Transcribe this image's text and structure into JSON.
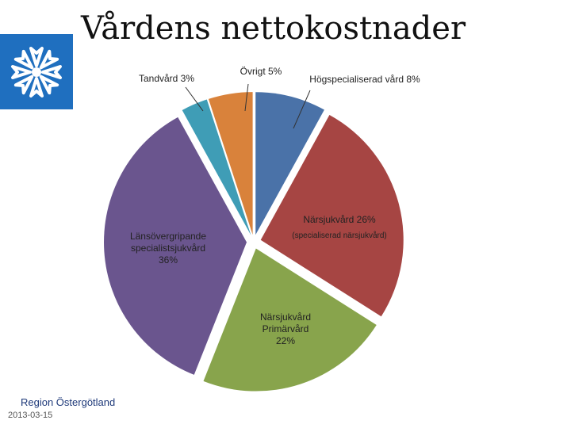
{
  "title": "Vårdens nettokostnader",
  "logo_icon": "cornflower-logo-icon",
  "footer": {
    "organization": "Region Östergötland",
    "date": "2013-03-15"
  },
  "colors": {
    "logo_background": "#1f6fbf"
  },
  "chart_data": {
    "type": "pie",
    "title": "Vårdens nettokostnader",
    "exploded": true,
    "series": [
      {
        "label_lines": [
          "Högspecialiserad vård 8%"
        ],
        "value": 8,
        "color": "#4a72a8"
      },
      {
        "label_lines": [
          "Närsjukvård 26%",
          "(specialiserad närsjukvård)"
        ],
        "value": 26,
        "color": "#a64543"
      },
      {
        "label_lines": [
          "Närsjukvård",
          "Primärvård",
          "22%"
        ],
        "value": 22,
        "color": "#88a44c"
      },
      {
        "label_lines": [
          "Länsövergripande",
          "specialistsjukvård",
          "36%"
        ],
        "value": 36,
        "color": "#6a558e"
      },
      {
        "label_lines": [
          "Tandvård 3%"
        ],
        "value": 3,
        "color": "#3f9db6"
      },
      {
        "label_lines": [
          "Övrigt 5%"
        ],
        "value": 5,
        "color": "#d9823b"
      }
    ]
  }
}
